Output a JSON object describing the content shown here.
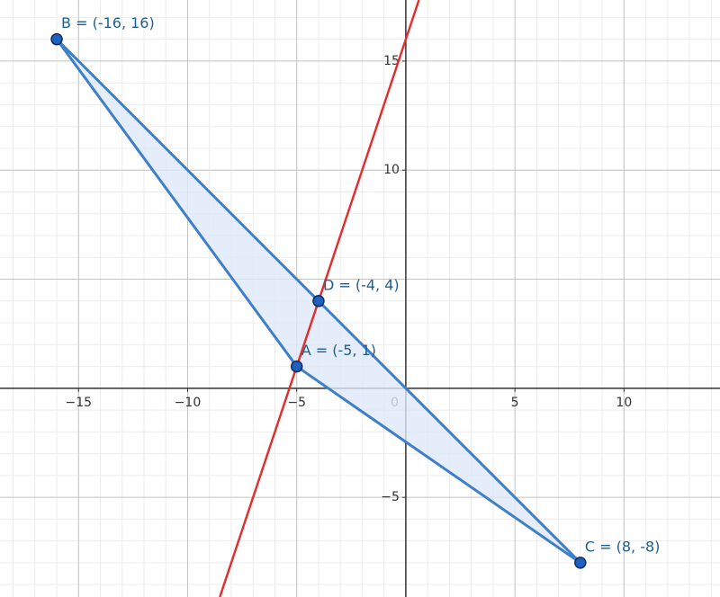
{
  "chart_data": {
    "type": "geometry",
    "xlim": [
      -18.6,
      14.4
    ],
    "ylim": [
      -9.57,
      17.8
    ],
    "xticks": [
      {
        "value": -15,
        "label": "−15"
      },
      {
        "value": -10,
        "label": "−10"
      },
      {
        "value": -5,
        "label": "−5"
      },
      0,
      5,
      10
    ],
    "yticks": [
      {
        "value": -5,
        "label": "−5"
      },
      10,
      15
    ],
    "major_grid_step": 5,
    "minor_grid_step": 1,
    "points": [
      {
        "label": "A = (-5, 1)",
        "x": -5,
        "y": 1
      },
      {
        "label": "B = (-16, 16)",
        "x": -16,
        "y": 16
      },
      {
        "label": "C = (8, -8)",
        "x": 8,
        "y": -8
      },
      {
        "label": "D = (-4, 4)",
        "x": -4,
        "y": 4
      }
    ],
    "polygon": [
      0,
      1,
      2
    ],
    "line_through": [
      0,
      3
    ],
    "point_color": "#1f5fbf",
    "label_color": "#1f5f8f",
    "polygon_color": "#3f7fc8",
    "polygon_fill": "#dde8f7",
    "line_color": "#e03030"
  }
}
